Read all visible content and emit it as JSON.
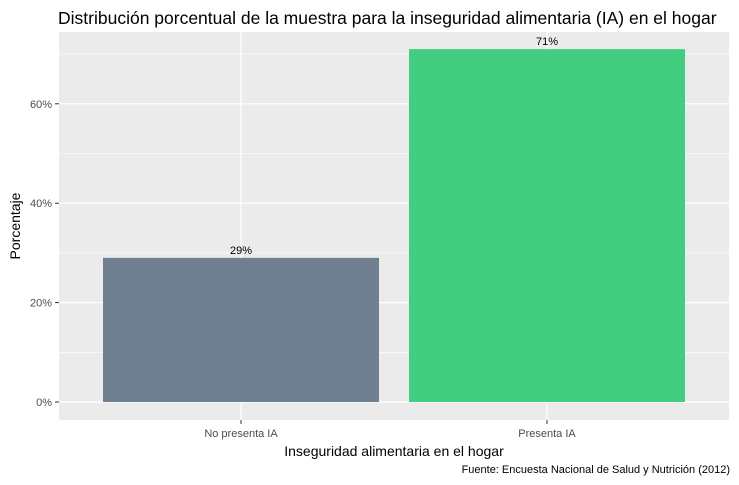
{
  "chart_data": {
    "type": "bar",
    "title": "Distribución porcentual de la muestra para la inseguridad alimentaria (IA) en el hogar",
    "xlabel": "Inseguridad alimentaria en el hogar",
    "ylabel": "Porcentaje",
    "caption": "Fuente: Encuesta Nacional de Salud y Nutrición (2012)",
    "categories": [
      "No presenta IA",
      "Presenta IA"
    ],
    "values": [
      0.29,
      0.71
    ],
    "data_labels": [
      "29%",
      "71%"
    ],
    "colors": [
      "#708090",
      "#43CD80"
    ],
    "ylim": [
      0,
      0.75
    ],
    "yticks": [
      0,
      0.2,
      0.4,
      0.6
    ],
    "ytick_labels": [
      "0%",
      "20%",
      "40%",
      "60%"
    ],
    "panel_background": "#ebebeb",
    "grid_color": "#ffffff",
    "grid": true,
    "legend": "none"
  }
}
